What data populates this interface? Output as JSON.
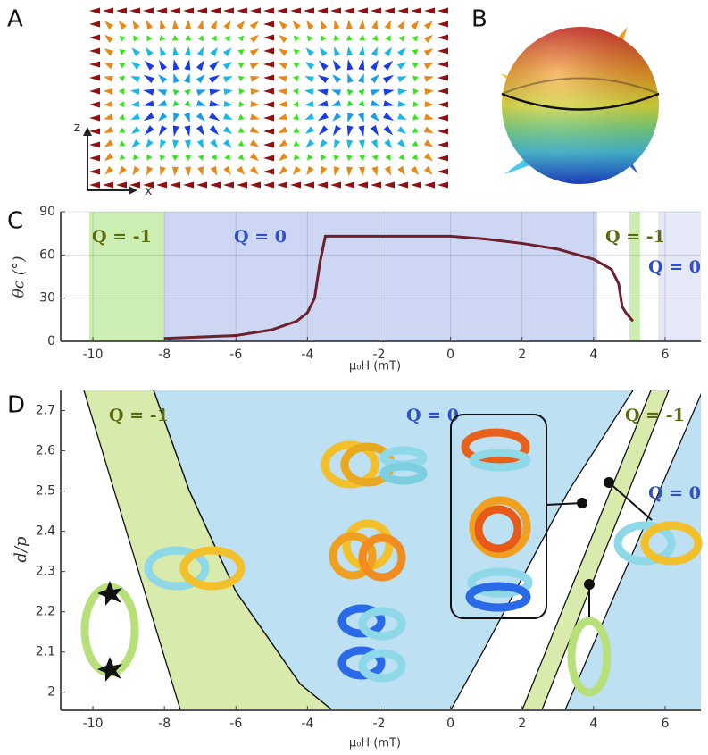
{
  "panel_labels": [
    "A",
    "B",
    "C",
    "D"
  ],
  "panel_a": {
    "axis_labels": [
      "z",
      "x"
    ]
  },
  "chart_data": [
    {
      "type": "line",
      "y_label": "θc (°)",
      "x_label": "μ₀H (mT)",
      "xlim": [
        -10.9,
        7
      ],
      "ylim": [
        0,
        90
      ],
      "xticks": [
        -10,
        -8,
        -6,
        -4,
        -2,
        0,
        2,
        4,
        6
      ],
      "yticks": [
        0,
        30,
        60,
        90
      ],
      "grid": true,
      "series": [
        {
          "color": "#6e1f2c",
          "x": [
            -8,
            -7,
            -6,
            -5,
            -4.3,
            -4,
            -3.8,
            -3.65,
            -3.5,
            0,
            1,
            2,
            3,
            4,
            4.5,
            4.7,
            4.8,
            4.9,
            5.1
          ],
          "values": [
            2,
            3,
            4,
            8,
            14,
            20,
            30,
            55,
            73,
            73,
            71,
            68,
            64,
            57,
            50,
            40,
            24,
            20,
            14
          ]
        }
      ],
      "regions": [
        {
          "x": [
            -10.1,
            -8
          ],
          "color": "#cdeeb2"
        },
        {
          "x": [
            -8,
            4.1
          ],
          "color": "#cdd6f2"
        },
        {
          "x": [
            5.0,
            5.3
          ],
          "color": "#cdeeb2"
        },
        {
          "x": [
            5.8,
            7
          ],
          "color": "#e4e8f7"
        }
      ],
      "annotations": [
        {
          "text": "Q = -1",
          "color": "#5c6a10"
        },
        {
          "text": "Q = 0",
          "color": "#3050c8"
        },
        {
          "text": "Q = -1",
          "color": "#5c6a10"
        },
        {
          "text": "Q = 0",
          "color": "#3050c8"
        }
      ]
    },
    {
      "type": "phase",
      "y_label": "d/p",
      "x_label": "μ₀H (mT)",
      "xlim": [
        -10.9,
        7
      ],
      "ylim": [
        1.955,
        2.75
      ],
      "xticks": [
        -10,
        -8,
        -6,
        -4,
        -2,
        0,
        2,
        4,
        6
      ],
      "yticks": [
        2,
        2.1,
        2.2,
        2.3,
        2.4,
        2.5,
        2.6,
        2.7
      ],
      "regions": [
        {
          "color": "#d8ebad",
          "left": {
            "x": [
              -10.25,
              -7.55
            ],
            "y": [
              2.75,
              1.955
            ]
          },
          "right": {
            "x": [
              -8.3,
              -7.3,
              -6.0,
              -4.2,
              -3.3
            ],
            "y": [
              2.75,
              2.5,
              2.25,
              2.02,
              1.955
            ]
          }
        },
        {
          "color": "#bde0f3",
          "left": {
            "x": [
              -8.3,
              -7.3,
              -6.0,
              -4.2,
              -3.3
            ],
            "y": [
              2.75,
              2.5,
              2.25,
              2.02,
              1.955
            ]
          },
          "right": {
            "x": [
              5.1,
              3.3,
              2.1,
              0.9,
              0
            ],
            "y": [
              2.75,
              2.5,
              2.3,
              2.1,
              1.955
            ]
          }
        },
        {
          "color": "#d8ebad",
          "left": {
            "x": [
              5.6,
              2.0
            ],
            "y": [
              2.75,
              1.955
            ]
          },
          "right": {
            "x": [
              6.1,
              2.55
            ],
            "y": [
              2.75,
              1.955
            ]
          }
        },
        {
          "color": "#bde0f3",
          "left": {
            "x": [
              7.05,
              3.2
            ],
            "y": [
              2.75,
              1.955
            ]
          }
        }
      ],
      "annotations": [
        {
          "text": "Q = -1",
          "color": "#5c6a10"
        },
        {
          "text": "Q = 0",
          "color": "#3050c8"
        },
        {
          "text": "Q = -1",
          "color": "#5c6a10"
        },
        {
          "text": "Q = 0",
          "color": "#3050c8"
        }
      ]
    }
  ]
}
